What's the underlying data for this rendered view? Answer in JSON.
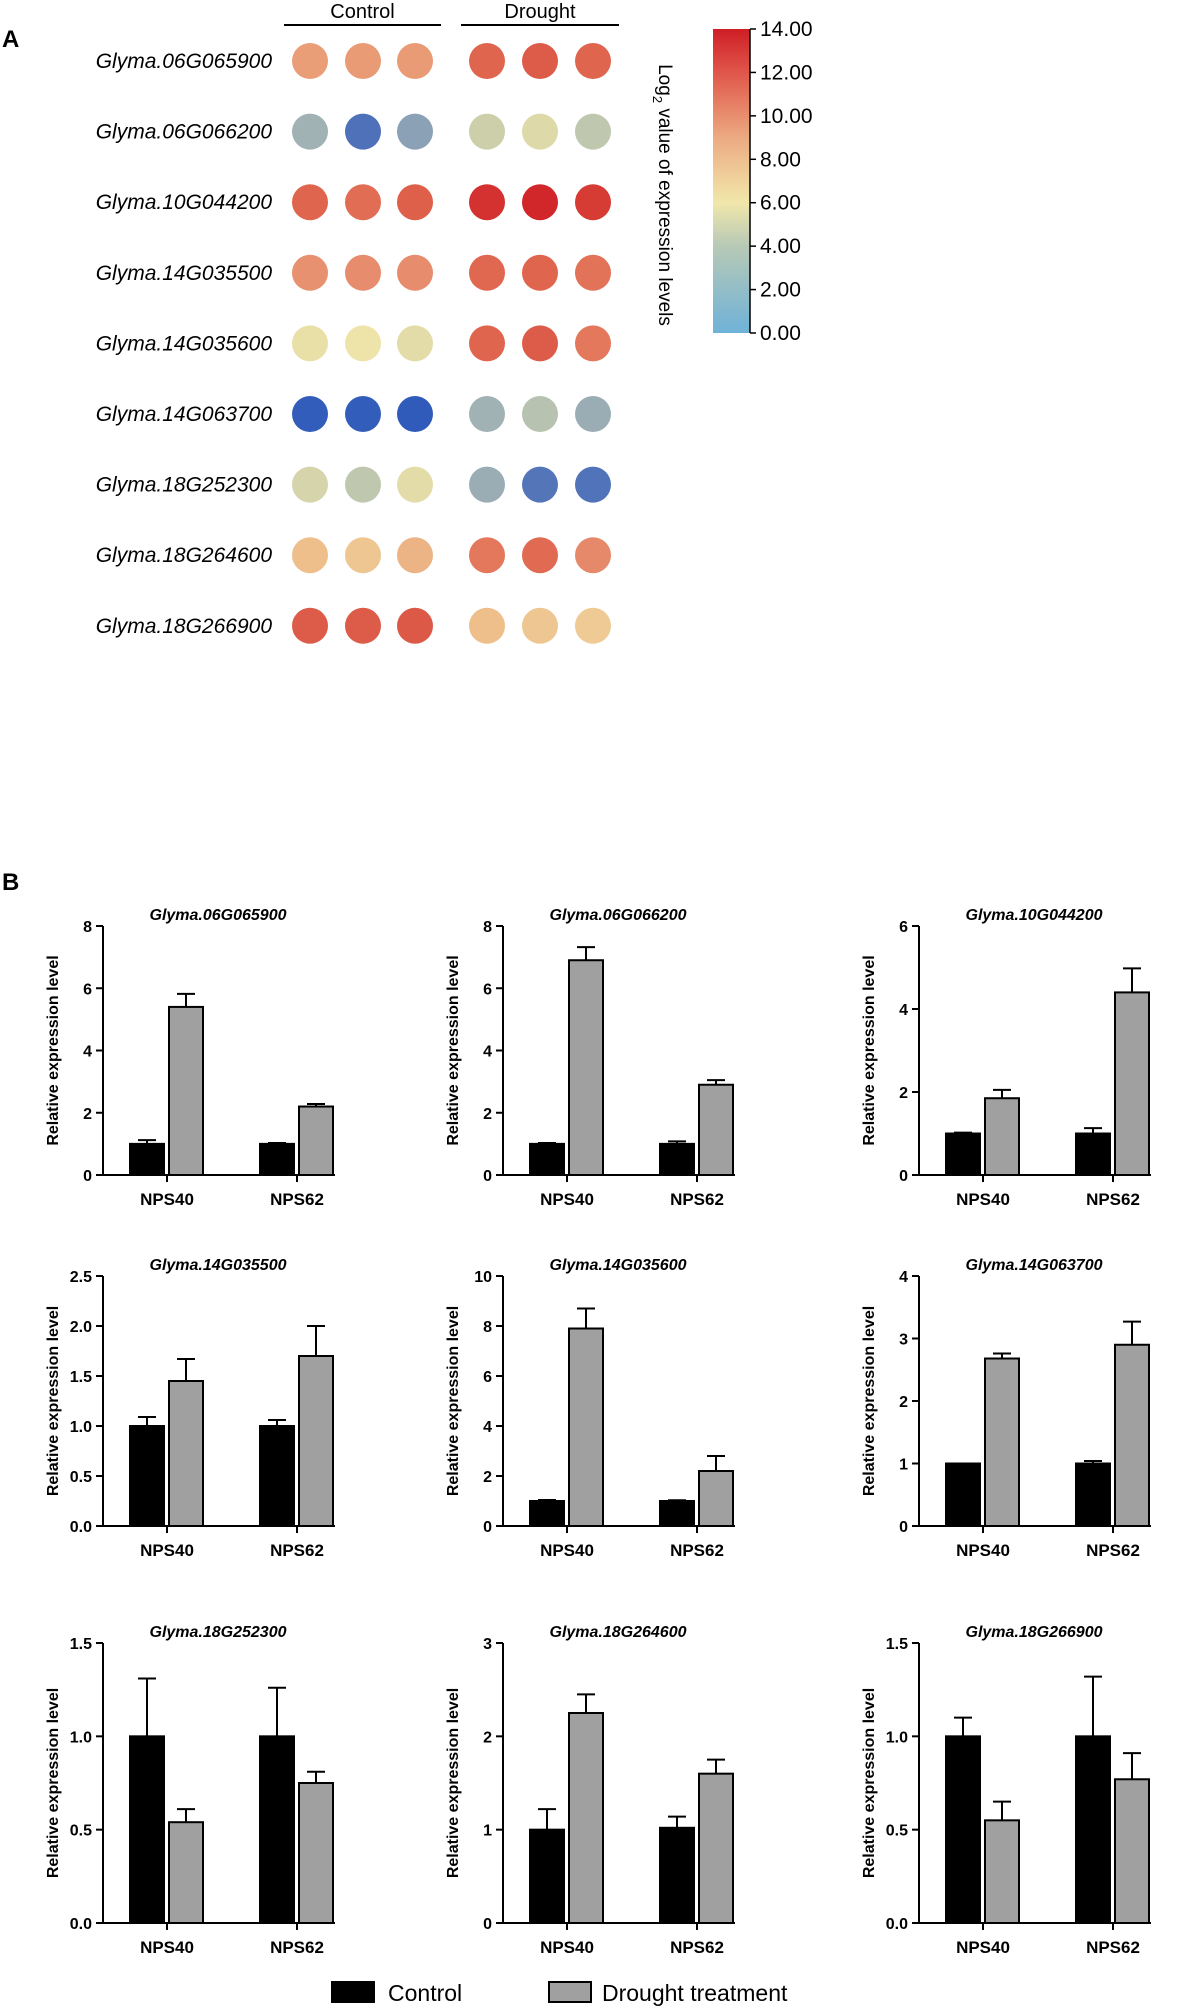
{
  "panel_a_label": "A",
  "panel_b_label": "B",
  "chart_data": [
    {
      "type": "heatmap",
      "title": "",
      "column_groups": [
        {
          "label": "Control",
          "columns": 3
        },
        {
          "label": "Drought",
          "columns": 3
        }
      ],
      "rows": [
        "Glyma.06G065900",
        "Glyma.06G066200",
        "Glyma.10G044200",
        "Glyma.14G035500",
        "Glyma.14G035600",
        "Glyma.14G063700",
        "Glyma.18G252300",
        "Glyma.18G264600",
        "Glyma.18G266900"
      ],
      "values": [
        [
          9.6,
          9.7,
          9.7,
          11.6,
          11.9,
          11.6
        ],
        [
          3.8,
          1.2,
          3.1,
          5.4,
          6.0,
          4.9
        ],
        [
          11.6,
          11.3,
          11.8,
          13.3,
          13.7,
          13.0
        ],
        [
          10.0,
          10.2,
          10.2,
          11.5,
          11.6,
          11.1
        ],
        [
          6.6,
          6.9,
          6.3,
          11.6,
          11.9,
          10.9
        ],
        [
          0.3,
          0.3,
          0.2,
          3.8,
          4.6,
          3.6
        ],
        [
          5.7,
          4.9,
          6.3,
          3.6,
          1.4,
          1.3
        ],
        [
          8.6,
          8.3,
          8.9,
          10.9,
          11.4,
          10.3
        ],
        [
          11.9,
          11.9,
          12.0,
          8.6,
          8.3,
          8.1
        ]
      ],
      "colorbar": {
        "label": "Log₂ value of expression levels",
        "label_base": "Log",
        "label_sub": "2",
        "label_rest": " value of expression levels",
        "ticks": [
          "14.00",
          "12.00",
          "10.00",
          "8.00",
          "6.00",
          "4.00",
          "2.00",
          "0.00"
        ],
        "min": 0,
        "max": 14,
        "stops": [
          {
            "v": 0,
            "color": "#6fb2d8"
          },
          {
            "v": 4,
            "color": "#b7c9b6"
          },
          {
            "v": 6,
            "color": "#f1e7aa"
          },
          {
            "v": 9,
            "color": "#ecaa82"
          },
          {
            "v": 12,
            "color": "#e0564a"
          },
          {
            "v": 14,
            "color": "#cf1e26"
          }
        ]
      },
      "dot_scale": {
        "stops": [
          {
            "v": 0,
            "color": "#2a57ba"
          },
          {
            "v": 1.3,
            "color": "#5173b9"
          },
          {
            "v": 3.0,
            "color": "#889fb5"
          },
          {
            "v": 4.0,
            "color": "#a7b7b4"
          },
          {
            "v": 5.0,
            "color": "#c2c9ad"
          },
          {
            "v": 6.0,
            "color": "#ded9a8"
          },
          {
            "v": 7.0,
            "color": "#f0e4a8"
          },
          {
            "v": 8.5,
            "color": "#eec18d"
          },
          {
            "v": 10.0,
            "color": "#e89170"
          },
          {
            "v": 11.5,
            "color": "#e06850"
          },
          {
            "v": 13.0,
            "color": "#d63b34"
          },
          {
            "v": 14.0,
            "color": "#cf1e26"
          }
        ]
      }
    },
    {
      "type": "bar",
      "title": "Glyma.06G065900",
      "ylabel": "Relative expression level",
      "categories": [
        "NPS40",
        "NPS62"
      ],
      "ylim": [
        0,
        8
      ],
      "yticks": [
        "0",
        "2",
        "4",
        "6",
        "8"
      ],
      "series": [
        {
          "name": "Control",
          "values": [
            1.0,
            1.0
          ],
          "errors": [
            0.12,
            0.03
          ]
        },
        {
          "name": "Drought treatment",
          "values": [
            5.4,
            2.2
          ],
          "errors": [
            0.42,
            0.08
          ]
        }
      ]
    },
    {
      "type": "bar",
      "title": "Glyma.06G066200",
      "ylabel": "Relative expression level",
      "categories": [
        "NPS40",
        "NPS62"
      ],
      "ylim": [
        0,
        8
      ],
      "yticks": [
        "0",
        "2",
        "4",
        "6",
        "8"
      ],
      "series": [
        {
          "name": "Control",
          "values": [
            1.0,
            1.0
          ],
          "errors": [
            0.03,
            0.08
          ]
        },
        {
          "name": "Drought treatment",
          "values": [
            6.9,
            2.9
          ],
          "errors": [
            0.42,
            0.15
          ]
        }
      ]
    },
    {
      "type": "bar",
      "title": "Glyma.10G044200",
      "ylabel": "Relative expression level",
      "categories": [
        "NPS40",
        "NPS62"
      ],
      "ylim": [
        0,
        6
      ],
      "yticks": [
        "0",
        "2",
        "4",
        "6"
      ],
      "series": [
        {
          "name": "Control",
          "values": [
            1.0,
            1.0
          ],
          "errors": [
            0.02,
            0.13
          ]
        },
        {
          "name": "Drought treatment",
          "values": [
            1.85,
            4.4
          ],
          "errors": [
            0.2,
            0.58
          ]
        }
      ]
    },
    {
      "type": "bar",
      "title": "Glyma.14G035500",
      "ylabel": "Relative expression level",
      "categories": [
        "NPS40",
        "NPS62"
      ],
      "ylim": [
        0,
        2.5
      ],
      "yticks": [
        "0.0",
        "0.5",
        "1.0",
        "1.5",
        "2.0",
        "2.5"
      ],
      "series": [
        {
          "name": "Control",
          "values": [
            1.0,
            1.0
          ],
          "errors": [
            0.09,
            0.06
          ]
        },
        {
          "name": "Drought treatment",
          "values": [
            1.45,
            1.7
          ],
          "errors": [
            0.22,
            0.3
          ]
        }
      ]
    },
    {
      "type": "bar",
      "title": "Glyma.14G035600",
      "ylabel": "Relative expression level",
      "categories": [
        "NPS40",
        "NPS62"
      ],
      "ylim": [
        0,
        10
      ],
      "yticks": [
        "0",
        "2",
        "4",
        "6",
        "8",
        "10"
      ],
      "series": [
        {
          "name": "Control",
          "values": [
            1.0,
            1.0
          ],
          "errors": [
            0.04,
            0.03
          ]
        },
        {
          "name": "Drought treatment",
          "values": [
            7.9,
            2.2
          ],
          "errors": [
            0.8,
            0.6
          ]
        }
      ]
    },
    {
      "type": "bar",
      "title": "Glyma.14G063700",
      "ylabel": "Relative expression level",
      "categories": [
        "NPS40",
        "NPS62"
      ],
      "ylim": [
        0,
        4
      ],
      "yticks": [
        "0",
        "1",
        "2",
        "3",
        "4"
      ],
      "series": [
        {
          "name": "Control",
          "values": [
            1.0,
            1.0
          ],
          "errors": [
            0.0,
            0.04
          ]
        },
        {
          "name": "Drought treatment",
          "values": [
            2.68,
            2.9
          ],
          "errors": [
            0.08,
            0.37
          ]
        }
      ]
    },
    {
      "type": "bar",
      "title": "Glyma.18G252300",
      "ylabel": "Relative expression level",
      "categories": [
        "NPS40",
        "NPS62"
      ],
      "ylim": [
        0,
        1.5
      ],
      "yticks": [
        "0.0",
        "0.5",
        "1.0",
        "1.5"
      ],
      "series": [
        {
          "name": "Control",
          "values": [
            1.0,
            1.0
          ],
          "errors": [
            0.31,
            0.26
          ]
        },
        {
          "name": "Drought treatment",
          "values": [
            0.54,
            0.75
          ],
          "errors": [
            0.07,
            0.06
          ]
        }
      ]
    },
    {
      "type": "bar",
      "title": "Glyma.18G264600",
      "ylabel": "Relative expression level",
      "categories": [
        "NPS40",
        "NPS62"
      ],
      "ylim": [
        0,
        3
      ],
      "yticks": [
        "0",
        "1",
        "2",
        "3"
      ],
      "series": [
        {
          "name": "Control",
          "values": [
            1.0,
            1.02
          ],
          "errors": [
            0.22,
            0.12
          ]
        },
        {
          "name": "Drought treatment",
          "values": [
            2.25,
            1.6
          ],
          "errors": [
            0.2,
            0.15
          ]
        }
      ]
    },
    {
      "type": "bar",
      "title": "Glyma.18G266900",
      "ylabel": "Relative  expression  level",
      "categories": [
        "NPS40",
        "NPS62"
      ],
      "ylim": [
        0,
        1.5
      ],
      "yticks": [
        "0.0",
        "0.5",
        "1.0",
        "1.5"
      ],
      "series": [
        {
          "name": "Control",
          "values": [
            1.0,
            1.0
          ],
          "errors": [
            0.1,
            0.32
          ]
        },
        {
          "name": "Drought treatment",
          "values": [
            0.55,
            0.77
          ],
          "errors": [
            0.1,
            0.14
          ]
        }
      ]
    }
  ],
  "legend": {
    "items": [
      {
        "label": "Control",
        "color": "#000000"
      },
      {
        "label": "Drought treatment",
        "color": "#a0a0a0"
      }
    ]
  }
}
